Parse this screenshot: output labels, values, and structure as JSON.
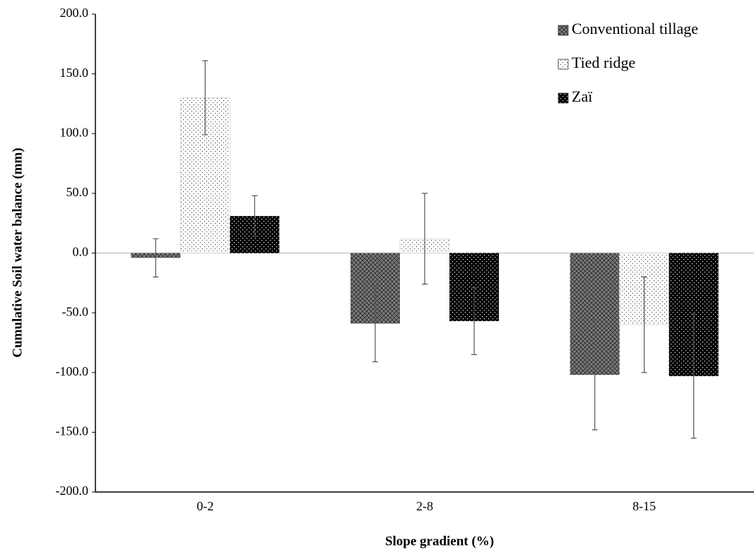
{
  "chart_data": {
    "type": "bar",
    "x_label": "Slope gradient (%)",
    "y_label": "Cumulative Soil water balance (mm)",
    "categories": [
      "0-2",
      "2-8",
      "8-15"
    ],
    "series": [
      {
        "name": "Conventional tillage",
        "color": "#7f7f7f",
        "values": [
          -4,
          -59,
          -102
        ],
        "errors": [
          16,
          32,
          46
        ]
      },
      {
        "name": "Tied ridge",
        "color": "#ffffff",
        "values": [
          130,
          12,
          -60
        ],
        "errors": [
          31,
          38,
          40
        ]
      },
      {
        "name": "Zaï",
        "color": "#000000",
        "values": [
          31,
          -57,
          -103
        ],
        "errors": [
          17,
          28,
          52
        ]
      }
    ],
    "ylim": [
      -200,
      200
    ],
    "yticks": [
      {
        "value": -200,
        "label": "-200.0"
      },
      {
        "value": -150,
        "label": "-150.0"
      },
      {
        "value": -100,
        "label": "-100.0"
      },
      {
        "value": -50,
        "label": "-50.0"
      },
      {
        "value": 0,
        "label": "0.0"
      },
      {
        "value": 50,
        "label": "50.0"
      },
      {
        "value": 100,
        "label": "100.0"
      },
      {
        "value": 150,
        "label": "150.0"
      },
      {
        "value": 200,
        "label": "200.0"
      }
    ],
    "legend": "top-right"
  }
}
